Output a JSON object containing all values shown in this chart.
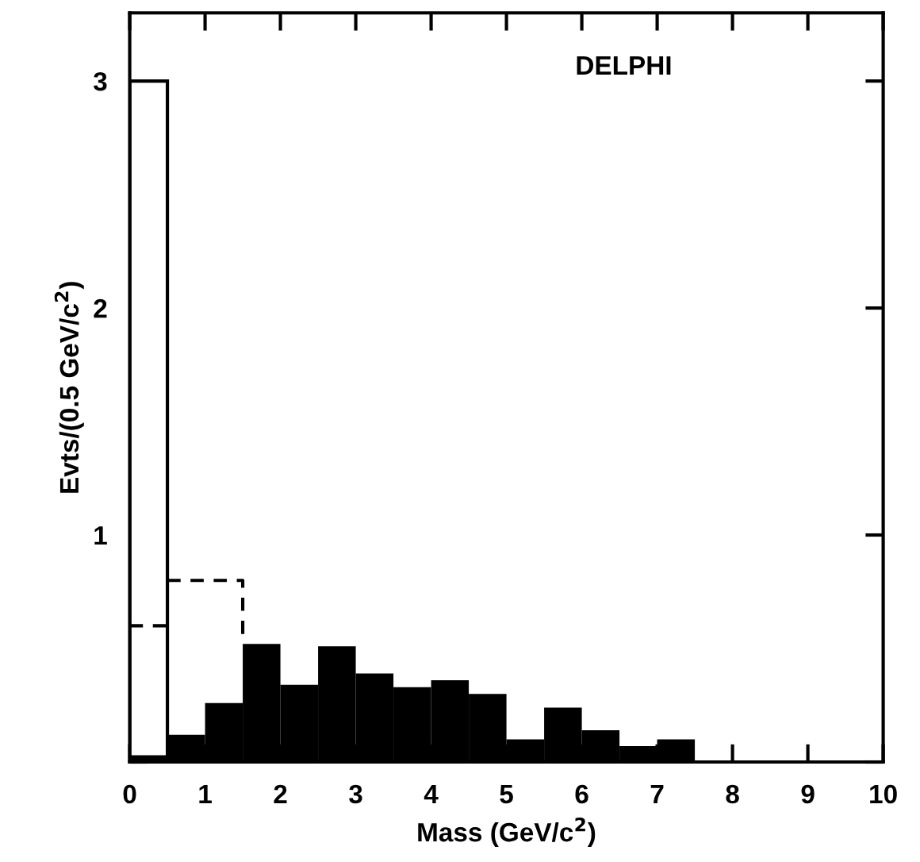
{
  "chart_data": {
    "type": "histogram",
    "title": "DELPHI",
    "xlabel": "Mass (GeV/c$^{2}$)",
    "ylabel": "Evts/(0.5 GeV/c$^{2}$)",
    "bins": [
      0,
      0.5,
      1,
      1.5,
      2,
      2.5,
      3,
      3.5,
      4,
      4.5,
      5,
      5.5,
      6,
      6.5,
      7,
      7.5,
      8,
      8.5,
      9,
      9.5,
      10
    ],
    "series": [
      {
        "color": "#ffffff",
        "values": [
          3.0,
          null,
          null,
          null,
          null,
          null,
          null,
          null,
          null,
          null,
          null,
          null,
          null,
          null,
          null,
          null,
          null,
          null,
          null,
          null
        ]
      },
      {
        "color": "#000000",
        "values": [
          0.03,
          0.12,
          0.26,
          0.52,
          0.34,
          0.51,
          0.39,
          0.33,
          0.36,
          0.3,
          0.1,
          0.24,
          0.14,
          0.07,
          0.1,
          0,
          0,
          0,
          0,
          0
        ]
      },
      {
        "type": "line",
        "color": "#000000",
        "line_style": "dashed",
        "x": [
          0.5,
          1.5,
          1.5
        ],
        "values": [
          0.8,
          0.8,
          0.52
        ]
      },
      {
        "type": "line",
        "color": "#000000",
        "line_style": "dashed",
        "x": [
          0,
          0.5
        ],
        "values": [
          0.6,
          0.6
        ]
      }
    ],
    "xlim": [
      0,
      10
    ],
    "ylim": [
      0,
      3.3
    ],
    "xticks": [
      0,
      1,
      2,
      3,
      4,
      5,
      6,
      7,
      8,
      9,
      10
    ],
    "yticks": [
      {
        "value": 0,
        "label": null
      },
      1,
      2,
      3
    ],
    "grid": false,
    "legend": false
  }
}
